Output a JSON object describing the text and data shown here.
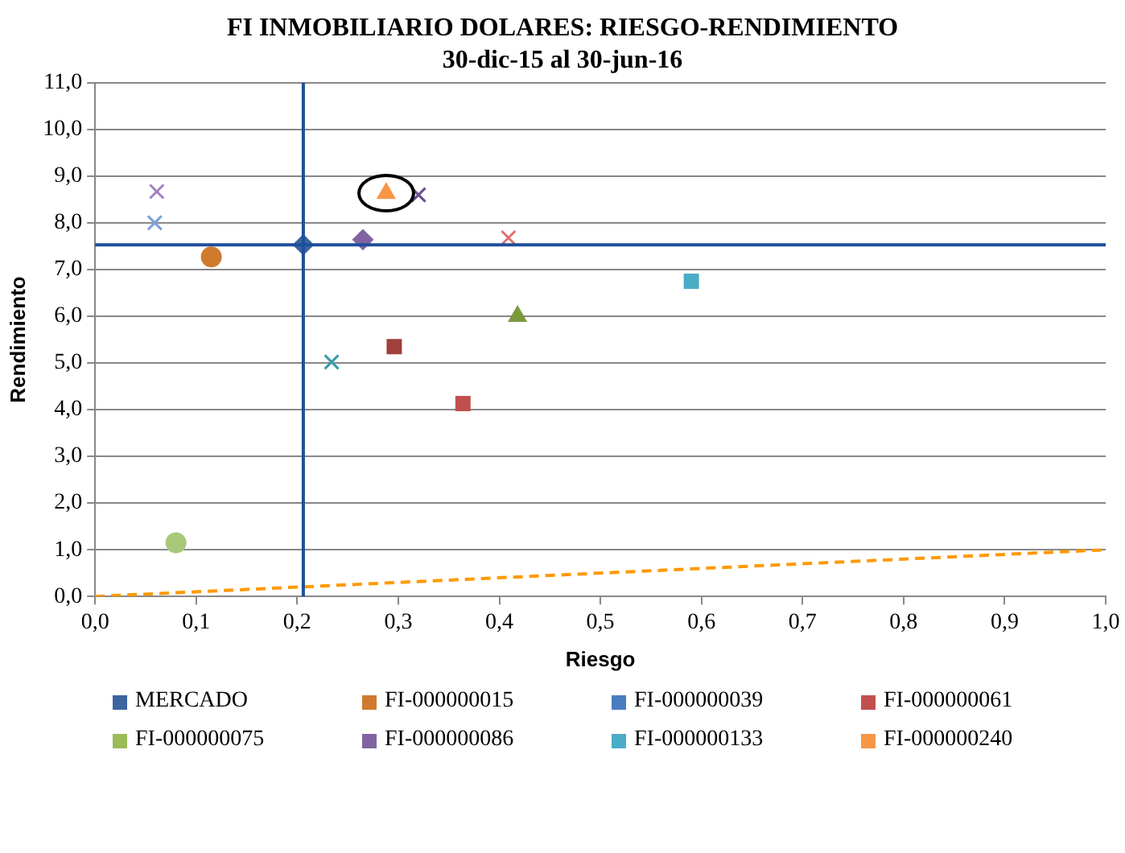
{
  "chart_data": {
    "type": "scatter",
    "title": "FI INMOBILIARIO DOLARES: RIESGO-RENDIMIENTO",
    "subtitle": "30-dic-15 al 30-jun-16",
    "xlabel": "Riesgo",
    "ylabel": "Rendimiento",
    "xlim": [
      0,
      1
    ],
    "xticks": [
      {
        "value": 0,
        "label": "0,0"
      },
      {
        "value": 0.1,
        "label": "0,1"
      },
      {
        "value": 0.2,
        "label": "0,2"
      },
      {
        "value": 0.3,
        "label": "0,3"
      },
      {
        "value": 0.4,
        "label": "0,4"
      },
      {
        "value": 0.5,
        "label": "0,5"
      },
      {
        "value": 0.6,
        "label": "0,6"
      },
      {
        "value": 0.7,
        "label": "0,7"
      },
      {
        "value": 0.8,
        "label": "0,8"
      },
      {
        "value": 0.9,
        "label": "0,9"
      },
      {
        "value": 1,
        "label": "1,0"
      }
    ],
    "ylim": [
      0,
      11
    ],
    "yticks": [
      {
        "value": 0,
        "label": "0,0"
      },
      {
        "value": 1,
        "label": "1,0"
      },
      {
        "value": 2,
        "label": "2,0"
      },
      {
        "value": 3,
        "label": "3,0"
      },
      {
        "value": 4,
        "label": "4,0"
      },
      {
        "value": 5,
        "label": "5,0"
      },
      {
        "value": 6,
        "label": "6,0"
      },
      {
        "value": 7,
        "label": "7,0"
      },
      {
        "value": 8,
        "label": "8,0"
      },
      {
        "value": 9,
        "label": "9,0"
      },
      {
        "value": 10,
        "label": "10,0"
      },
      {
        "value": 11,
        "label": "11,0"
      }
    ],
    "grid": "y",
    "legend": "bottom",
    "ref_lines": [
      {
        "axis": "x",
        "value": 0.206,
        "color": "#1f4e9a"
      },
      {
        "axis": "y",
        "value": 7.53,
        "color": "#1f4e9a"
      }
    ],
    "series": [
      {
        "name": "MERCADO",
        "color": "#3b64a0",
        "marker": "diamond",
        "x": [
          0.206
        ],
        "values": [
          7.53
        ]
      },
      {
        "color": "#a0403c",
        "marker": "square",
        "x": [
          0.296
        ],
        "values": [
          5.35
        ]
      },
      {
        "color": "#7a9a3c",
        "marker": "triangle",
        "x": [
          0.418
        ],
        "values": [
          6.0
        ]
      },
      {
        "color": "#6a4f8c",
        "marker": "cross",
        "x": [
          0.32
        ],
        "values": [
          8.6
        ]
      },
      {
        "color": "#3b9aac",
        "marker": "cross",
        "x": [
          0.234
        ],
        "values": [
          5.02
        ]
      },
      {
        "name": "FI-000000015",
        "color": "#d07a2e",
        "marker": "circle",
        "x": [
          0.115
        ],
        "values": [
          7.27
        ]
      },
      {
        "name": "FI-000000039",
        "color": "#4a7cc0",
        "marker": "cross",
        "x": [
          null
        ],
        "values": [
          null
        ]
      },
      {
        "name": "FI-000000061",
        "color": "#c0504d",
        "marker": "square",
        "x": [
          0.364
        ],
        "values": [
          4.13
        ]
      },
      {
        "name": "FI-000000075",
        "color": "#9bbb59",
        "marker": "square",
        "x": [
          null
        ],
        "values": [
          null
        ]
      },
      {
        "name": "FI-000000086",
        "color": "#8064a2",
        "marker": "diamond",
        "x": [
          0.265
        ],
        "values": [
          7.64
        ]
      },
      {
        "name": "FI-000000133",
        "color": "#4bacc6",
        "marker": "square",
        "x": [
          0.59
        ],
        "values": [
          6.75
        ]
      },
      {
        "name": "FI-000000240",
        "color": "#f79646",
        "marker": "triangle",
        "x": [
          0.288
        ],
        "values": [
          8.63
        ]
      },
      {
        "color": "#7f9fd8",
        "marker": "cross",
        "x": [
          0.059
        ],
        "values": [
          8.0
        ]
      },
      {
        "color": "#e07070",
        "marker": "cross",
        "x": [
          0.409
        ],
        "values": [
          7.68
        ]
      },
      {
        "color": "#a8c87a",
        "marker": "circle",
        "x": [
          0.08
        ],
        "values": [
          1.15
        ]
      },
      {
        "color": "#a080c0",
        "marker": "cross",
        "x": [
          0.061
        ],
        "values": [
          8.67
        ]
      },
      {
        "type": "line",
        "color": "#ff9900",
        "line_style": "dashed",
        "marker": "none",
        "x": [
          0,
          1
        ],
        "values": [
          0,
          1.0
        ]
      }
    ]
  }
}
